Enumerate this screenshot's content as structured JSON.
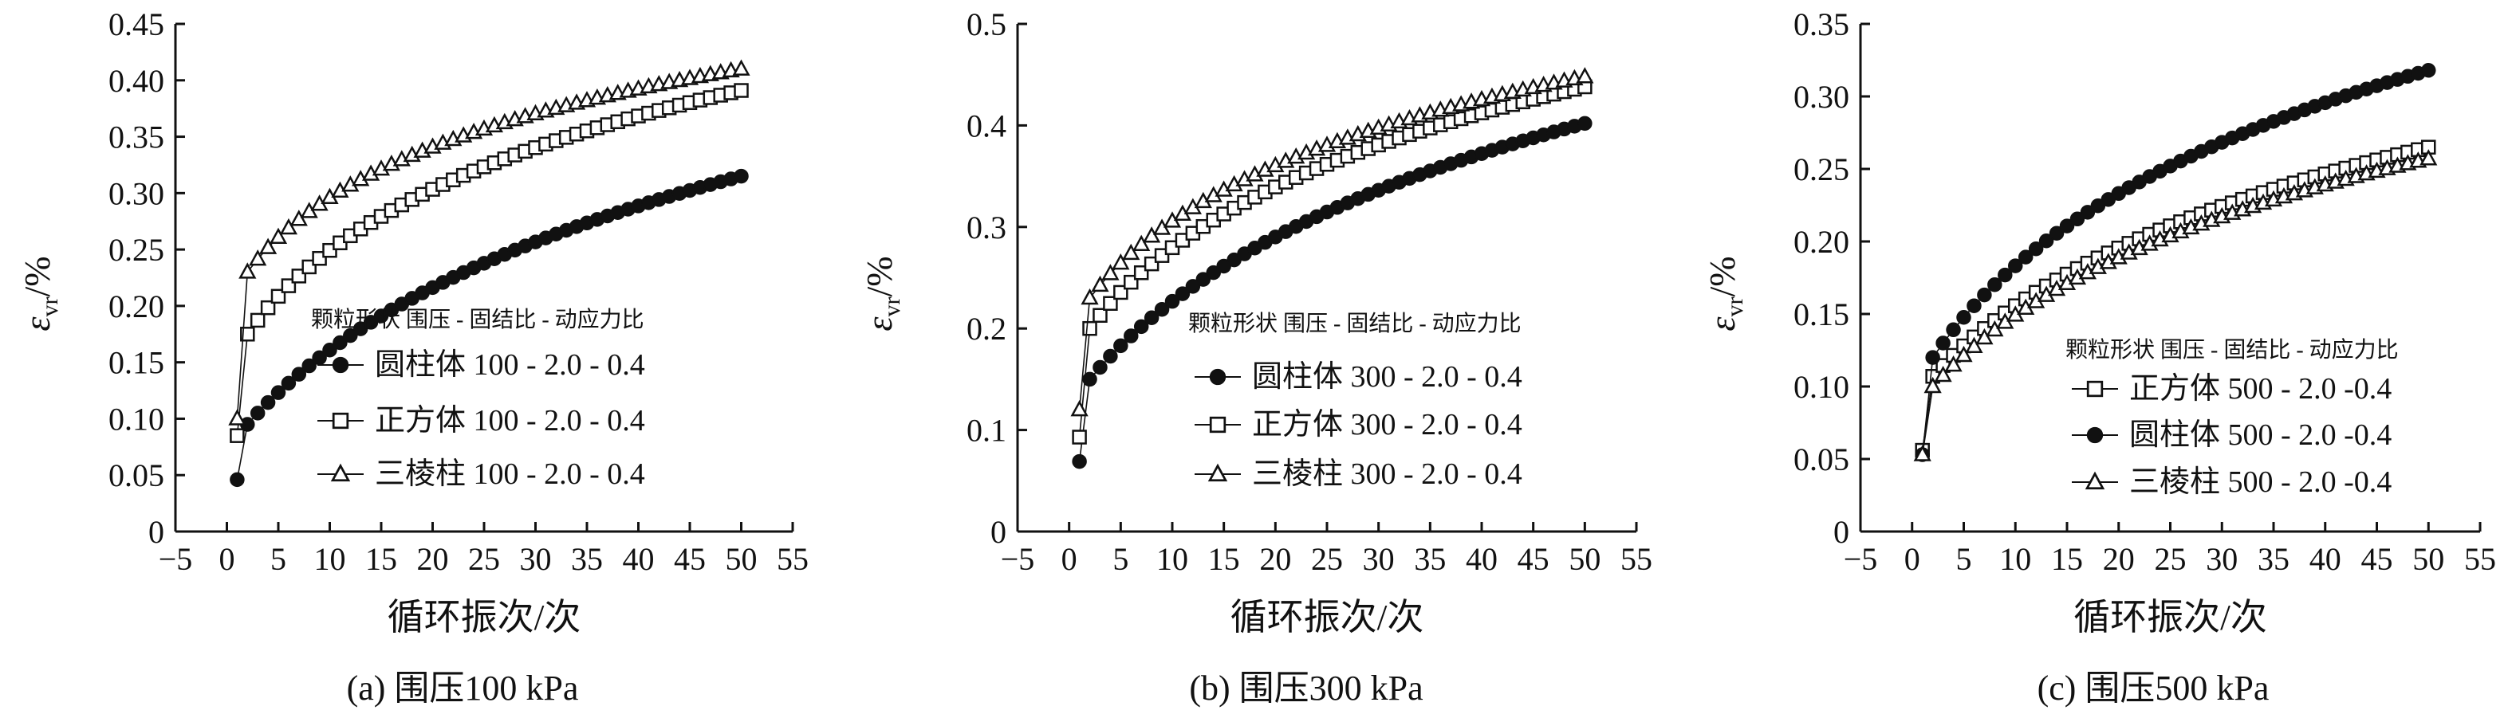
{
  "chart_data": [
    {
      "type": "scatter",
      "caption": "(a) 围压100 kPa",
      "xlabel": "循环振次/次",
      "ylabel": "εvr/%",
      "ylabel_main": "ε",
      "ylabel_sub": "vr",
      "ylabel_suffix": "/%",
      "xlim": [
        -5,
        55
      ],
      "ylim": [
        0,
        0.45
      ],
      "xticks": [
        -5,
        0,
        5,
        10,
        15,
        20,
        25,
        30,
        35,
        40,
        45,
        50,
        55
      ],
      "xtick_labels": [
        "−5",
        "0",
        "5",
        "10",
        "15",
        "20",
        "25",
        "30",
        "35",
        "40",
        "45",
        "50",
        "55"
      ],
      "yticks": [
        0,
        0.05,
        0.1,
        0.15,
        0.2,
        0.25,
        0.3,
        0.35,
        0.4,
        0.45
      ],
      "ytick_labels": [
        "0",
        "0.05",
        "0.10",
        "0.15",
        "0.20",
        "0.25",
        "0.30",
        "0.35",
        "0.40",
        "0.45"
      ],
      "legend_title": "颗粒形状 围压 - 固结比 - 动应力比",
      "legend_placement": "center-right",
      "series": [
        {
          "name": "圆柱体 100 - 2.0 - 0.4",
          "marker": "filled-circle",
          "first": 0.046,
          "second": 0.095,
          "end": 0.315,
          "k": 0.068
        },
        {
          "name": "正方体 100 - 2.0 - 0.4",
          "marker": "open-square",
          "first": 0.085,
          "second": 0.175,
          "end": 0.391,
          "k": 0.11
        },
        {
          "name": "三棱柱 100 - 2.0 - 0.4",
          "marker": "open-triangle",
          "first": 0.1,
          "second": 0.23,
          "end": 0.41,
          "k": 0.14
        }
      ]
    },
    {
      "type": "scatter",
      "caption": "(b) 围压300 kPa",
      "xlabel": "循环振次/次",
      "ylabel": "εvr/%",
      "ylabel_main": "ε",
      "ylabel_sub": "vr",
      "ylabel_suffix": "/%",
      "xlim": [
        -5,
        55
      ],
      "ylim": [
        0,
        0.5
      ],
      "xticks": [
        -5,
        0,
        5,
        10,
        15,
        20,
        25,
        30,
        35,
        40,
        45,
        50,
        55
      ],
      "xtick_labels": [
        "−5",
        "0",
        "5",
        "10",
        "15",
        "20",
        "25",
        "30",
        "35",
        "40",
        "45",
        "50",
        "55"
      ],
      "yticks": [
        0,
        0.1,
        0.2,
        0.3,
        0.4,
        0.5
      ],
      "ytick_labels": [
        "0",
        "0.1",
        "0.2",
        "0.3",
        "0.4",
        "0.5"
      ],
      "legend_title": "颗粒形状 围压 - 固结比 - 动应力比",
      "legend_placement": "center-right",
      "series": [
        {
          "name": "圆柱体 300 - 2.0 - 0.4",
          "marker": "filled-circle",
          "first": 0.069,
          "second": 0.15,
          "end": 0.402,
          "k": 0.072
        },
        {
          "name": "正方体 300 - 2.0 - 0.4",
          "marker": "open-square",
          "first": 0.093,
          "second": 0.2,
          "end": 0.438,
          "k": 0.1
        },
        {
          "name": "三棱柱 300 - 2.0 - 0.4",
          "marker": "open-triangle",
          "first": 0.12,
          "second": 0.23,
          "end": 0.448,
          "k": 0.115
        }
      ]
    },
    {
      "type": "scatter",
      "caption": "(c) 围压500 kPa",
      "xlabel": "循环振次/次",
      "ylabel": "εvr/%",
      "ylabel_main": "ε",
      "ylabel_sub": "vr",
      "ylabel_suffix": "/%",
      "xlim": [
        -5,
        55
      ],
      "ylim": [
        0,
        0.35
      ],
      "xticks": [
        -5,
        0,
        5,
        10,
        15,
        20,
        25,
        30,
        35,
        40,
        45,
        50,
        55
      ],
      "xtick_labels": [
        "−5",
        "0",
        "5",
        "10",
        "15",
        "20",
        "25",
        "30",
        "35",
        "40",
        "45",
        "50",
        "55"
      ],
      "yticks": [
        0,
        0.05,
        0.1,
        0.15,
        0.2,
        0.25,
        0.3,
        0.35
      ],
      "ytick_labels": [
        "0",
        "0.05",
        "0.10",
        "0.15",
        "0.20",
        "0.25",
        "0.30",
        "0.35"
      ],
      "legend_title": "颗粒形状 围压 - 固结比 - 动应力比",
      "legend_placement": "bottom-right",
      "series": [
        {
          "name": "正方体 500 - 2.0 -0.4",
          "marker": "open-square",
          "first": 0.056,
          "second": 0.107,
          "end": 0.265,
          "k": 0.075
        },
        {
          "name": "圆柱体 500 - 2.0 -0.4",
          "marker": "filled-circle",
          "first": 0.053,
          "second": 0.12,
          "end": 0.318,
          "k": 0.085
        },
        {
          "name": "三棱柱 500 - 2.0 -0.4",
          "marker": "open-triangle",
          "first": 0.053,
          "second": 0.1,
          "end": 0.257,
          "k": 0.08
        }
      ]
    }
  ]
}
